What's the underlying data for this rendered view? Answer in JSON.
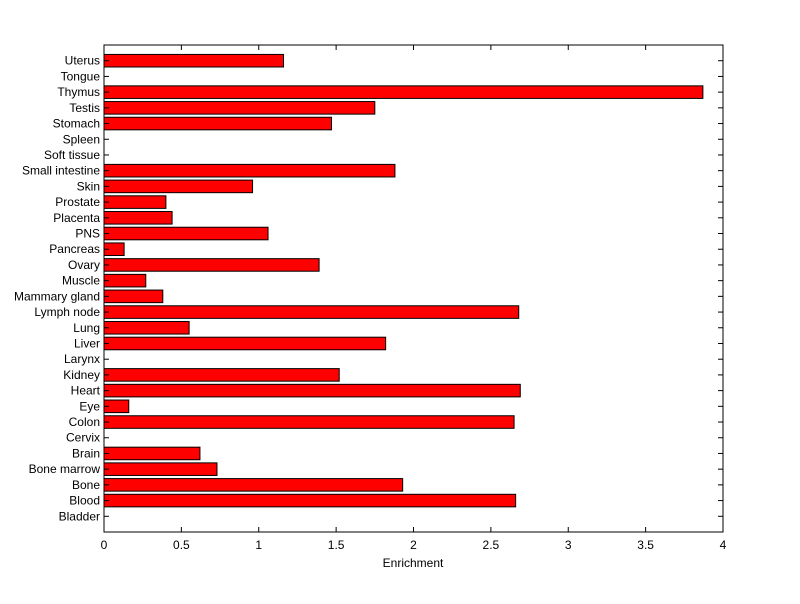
{
  "chart_data": {
    "type": "bar",
    "orientation": "horizontal",
    "title": "",
    "xlabel": "Enrichment",
    "ylabel": "",
    "xlim": [
      0,
      4
    ],
    "xticks": [
      "0",
      "0.5",
      "1",
      "1.5",
      "2",
      "2.5",
      "3",
      "3.5",
      "4"
    ],
    "grid": false,
    "bar_color": "#ff0000",
    "edge_color": "#000000",
    "categories": [
      "Uterus",
      "Tongue",
      "Thymus",
      "Testis",
      "Stomach",
      "Spleen",
      "Soft tissue",
      "Small intestine",
      "Skin",
      "Prostate",
      "Placenta",
      "PNS",
      "Pancreas",
      "Ovary",
      "Muscle",
      "Mammary gland",
      "Lymph node",
      "Lung",
      "Liver",
      "Larynx",
      "Kidney",
      "Heart",
      "Eye",
      "Colon",
      "Cervix",
      "Brain",
      "Bone marrow",
      "Bone",
      "Blood",
      "Bladder"
    ],
    "values": [
      1.16,
      0,
      3.87,
      1.75,
      1.47,
      0,
      0,
      1.88,
      0.96,
      0.4,
      0.44,
      1.06,
      0.13,
      1.39,
      0.27,
      0.38,
      2.68,
      0.55,
      1.82,
      0,
      1.52,
      2.69,
      0.16,
      2.65,
      0,
      0.62,
      0.73,
      1.93,
      2.66,
      0
    ]
  }
}
